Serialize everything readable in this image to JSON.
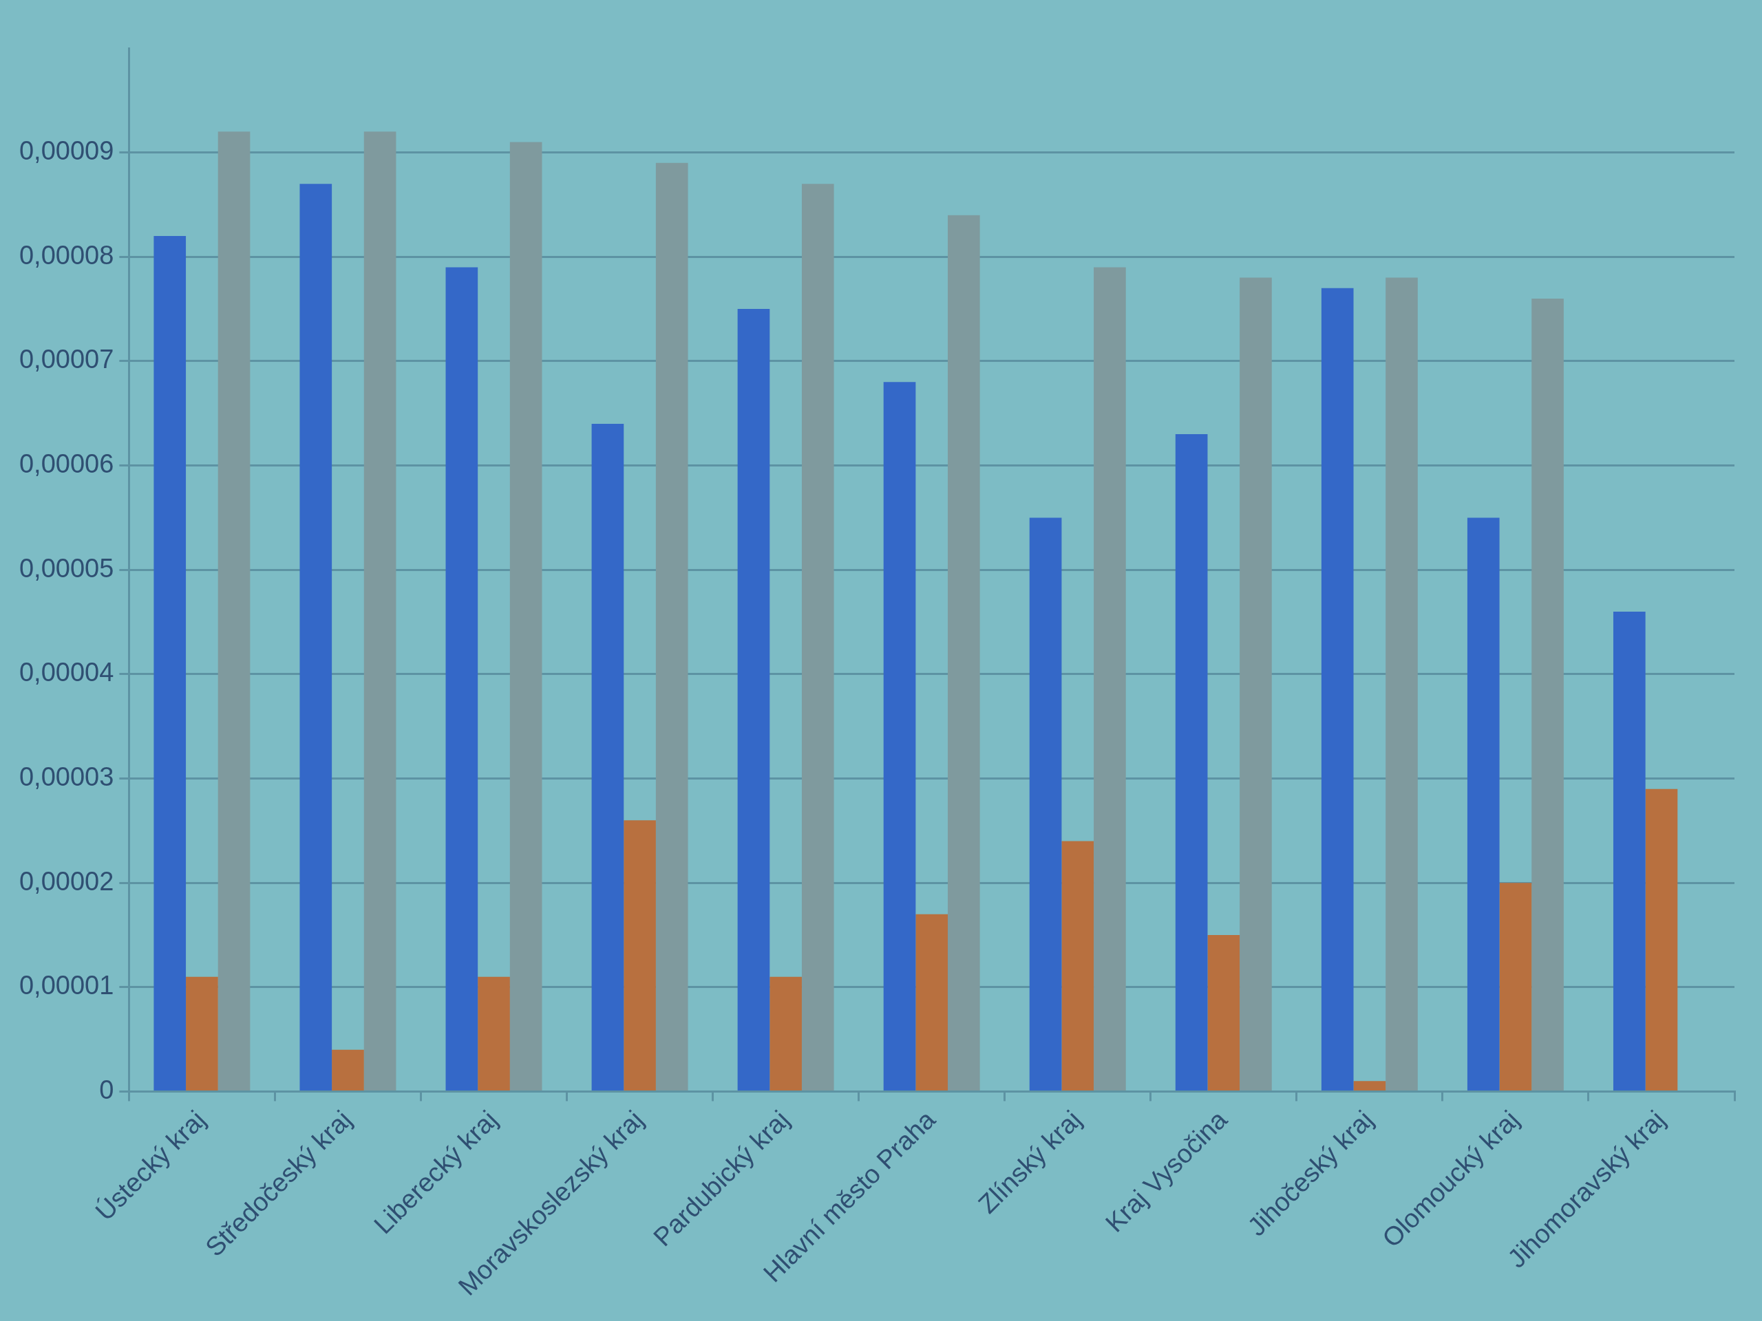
{
  "chart_data": {
    "type": "bar",
    "categories": [
      "Ústecký kraj",
      "Středočeský kraj",
      "Liberecký kraj",
      "Moravskoslezský kraj",
      "Pardubický kraj",
      "Hlavní město Praha",
      "Zlínský kraj",
      "Kraj Vysočina",
      "Jihočeský kraj",
      "Olomoucký kraj",
      "Jihomoravský kraj"
    ],
    "series": [
      {
        "color": "#3468c8",
        "values": [
          8.2e-05,
          8.7e-05,
          7.9e-05,
          6.4e-05,
          7.5e-05,
          6.8e-05,
          5.5e-05,
          6.3e-05,
          7.7e-05,
          5.5e-05,
          4.6e-05
        ]
      },
      {
        "color": "#b8703f",
        "values": [
          1.1e-05,
          4e-06,
          1.1e-05,
          2.6e-05,
          1.1e-05,
          1.7e-05,
          2.4e-05,
          1.5e-05,
          1e-06,
          2e-05,
          2.9e-05
        ]
      },
      {
        "color": "#7f9a9e",
        "values": [
          9.2e-05,
          9.2e-05,
          9.1e-05,
          8.9e-05,
          8.7e-05,
          8.4e-05,
          7.9e-05,
          7.8e-05,
          7.8e-05,
          7.6e-05,
          null
        ]
      }
    ],
    "ylim": [
      0,
      0.0001
    ],
    "yticks": [
      {
        "value": 0,
        "label": "0"
      },
      {
        "value": 1e-05,
        "label": "0,00001"
      },
      {
        "value": 2e-05,
        "label": "0,00002"
      },
      {
        "value": 3e-05,
        "label": "0,00003"
      },
      {
        "value": 4e-05,
        "label": "0,00004"
      },
      {
        "value": 5e-05,
        "label": "0,00005"
      },
      {
        "value": 6e-05,
        "label": "0,00006"
      },
      {
        "value": 7e-05,
        "label": "0,00007"
      },
      {
        "value": 8e-05,
        "label": "0,00008"
      },
      {
        "value": 9e-05,
        "label": "0,00009"
      }
    ],
    "grid": "y",
    "legend": false
  }
}
